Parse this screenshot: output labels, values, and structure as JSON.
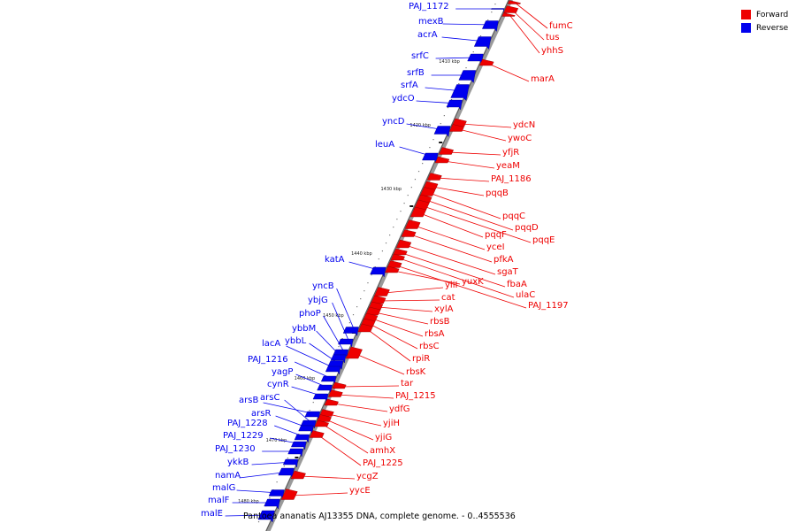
{
  "legend": {
    "forward_label": "Forward",
    "reverse_label": "Reverse",
    "forward_color": "#ee0000",
    "reverse_color": "#0000ee"
  },
  "caption": "Pantoea ananatis AJ13355 DNA, complete genome. - 0..4555536",
  "scale_ticks": [
    {
      "label": "1410 kbp"
    },
    {
      "label": "1420 kbp"
    },
    {
      "label": "1430 kbp"
    },
    {
      "label": "1440 kbp"
    },
    {
      "label": "1450 kbp"
    },
    {
      "label": "1460 kbp"
    },
    {
      "label": "1470 kbp"
    },
    {
      "label": "1480 kbp"
    }
  ],
  "reverse_genes": [
    "PAJ_1172",
    "mexB",
    "acrA",
    "srfC",
    "srfB",
    "srfA",
    "ydcO",
    "yncD",
    "leuA",
    "katA",
    "yncB",
    "ybjG",
    "phoP",
    "ybbM",
    "ybbL",
    "lacA",
    "PAJ_1216",
    "yagP",
    "cynR",
    "arsB",
    "arsC",
    "arsR",
    "PAJ_1228",
    "PAJ_1229",
    "PAJ_1230",
    "ykkB",
    "namA",
    "malG",
    "malF",
    "malE"
  ],
  "forward_genes": [
    "fumC",
    "tus",
    "yhhS",
    "marA",
    "ydcN",
    "ywoC",
    "yfjR",
    "yeaM",
    "PAJ_1186",
    "pqqB",
    "pqqC",
    "pqqD",
    "pqqE",
    "pqqF",
    "yceI",
    "pfkA",
    "sgaT",
    "fbaA",
    "ulaC",
    "PAJ_1197",
    "yuxK",
    "yliI",
    "cat",
    "xylA",
    "rbsB",
    "rbsA",
    "rbsC",
    "rpiR",
    "rbsK",
    "tar",
    "PAJ_1215",
    "ydfG",
    "yjiH",
    "yjiG",
    "amhX",
    "PAJ_1225",
    "ycgZ",
    "yycE"
  ]
}
